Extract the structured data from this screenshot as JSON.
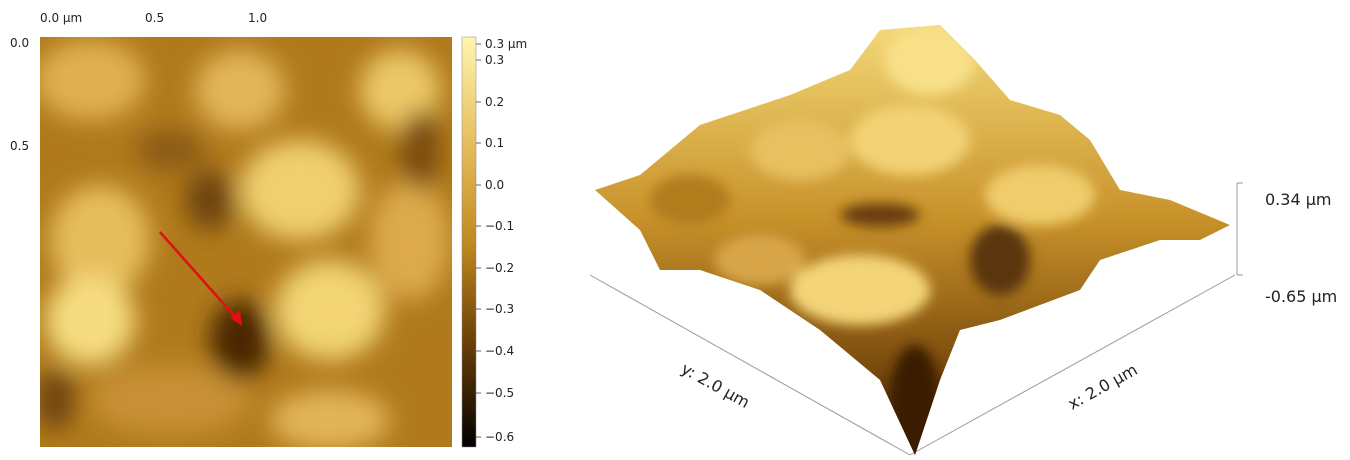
{
  "heightmap": {
    "top_labels": [
      "0.0 µm",
      "0.5",
      "1.0"
    ],
    "left_labels": [
      "0.0",
      "0.5"
    ],
    "colorbar_labels": [
      "0.3 µm",
      "0.3",
      "0.2",
      "0.1",
      "0.0",
      "−0.1",
      "−0.2",
      "−0.3",
      "−0.4",
      "−0.5",
      "−0.6"
    ]
  },
  "surface_3d": {
    "z_max_label": "0.34 µm",
    "z_min_label": "-0.65 µm",
    "y_axis_label": "y: 2.0 µm",
    "x_axis_label": "x: 2.0 µm"
  }
}
